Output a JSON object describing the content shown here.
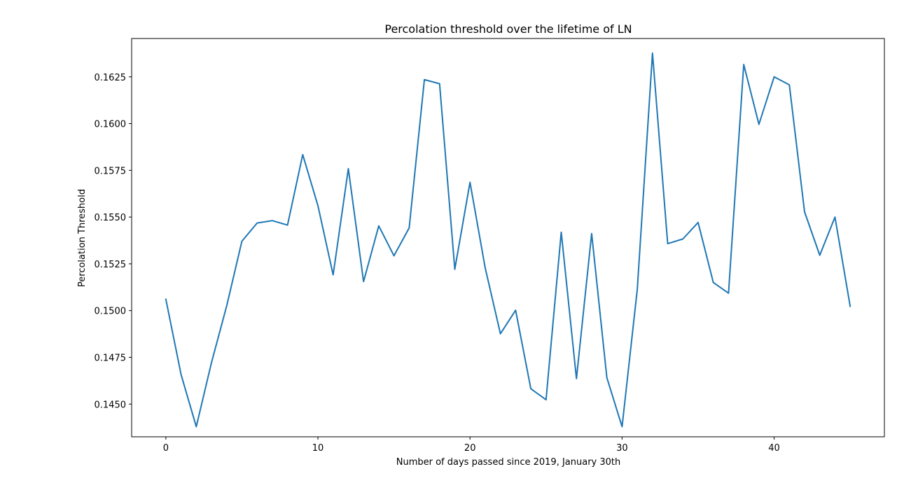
{
  "chart_data": {
    "type": "line",
    "title": "Percolation threshold over the lifetime of LN",
    "xlabel": "Number of days passed since 2019, January 30th",
    "ylabel": "Percolation Threshold",
    "xlim": [
      -2.25,
      47.25
    ],
    "ylim": [
      0.14325,
      0.16455
    ],
    "xticks": [
      0,
      10,
      20,
      30,
      40
    ],
    "xtick_labels": [
      "0",
      "10",
      "20",
      "30",
      "40"
    ],
    "yticks": [
      0.145,
      0.1475,
      0.15,
      0.1525,
      0.155,
      0.1575,
      0.16,
      0.1625
    ],
    "ytick_labels": [
      "0.1450",
      "0.1475",
      "0.1500",
      "0.1525",
      "0.1550",
      "0.1575",
      "0.1600",
      "0.1625"
    ],
    "grid": false,
    "series": [
      {
        "color": "#1f77b4",
        "x": [
          0,
          1,
          2,
          3,
          4,
          5,
          6,
          7,
          8,
          9,
          10,
          11,
          12,
          13,
          14,
          15,
          16,
          17,
          18,
          19,
          20,
          21,
          22,
          23,
          24,
          25,
          26,
          27,
          28,
          29,
          30,
          31,
          32,
          33,
          34,
          35,
          36,
          37,
          38,
          39,
          40,
          41,
          42,
          43,
          44,
          45
        ],
        "y": [
          0.15061,
          0.14658,
          0.14379,
          0.14722,
          0.15025,
          0.15371,
          0.15468,
          0.15481,
          0.15457,
          0.15834,
          0.15561,
          0.15191,
          0.15759,
          0.15155,
          0.15453,
          0.15293,
          0.15442,
          0.16235,
          0.16213,
          0.15221,
          0.15686,
          0.15228,
          0.14876,
          0.15002,
          0.14582,
          0.14523,
          0.15419,
          0.14636,
          0.15412,
          0.14641,
          0.14379,
          0.15113,
          0.16377,
          0.15358,
          0.15383,
          0.15471,
          0.1515,
          0.15093,
          0.16316,
          0.15996,
          0.1625,
          0.16207,
          0.15528,
          0.15296,
          0.155,
          0.15023
        ]
      }
    ]
  }
}
